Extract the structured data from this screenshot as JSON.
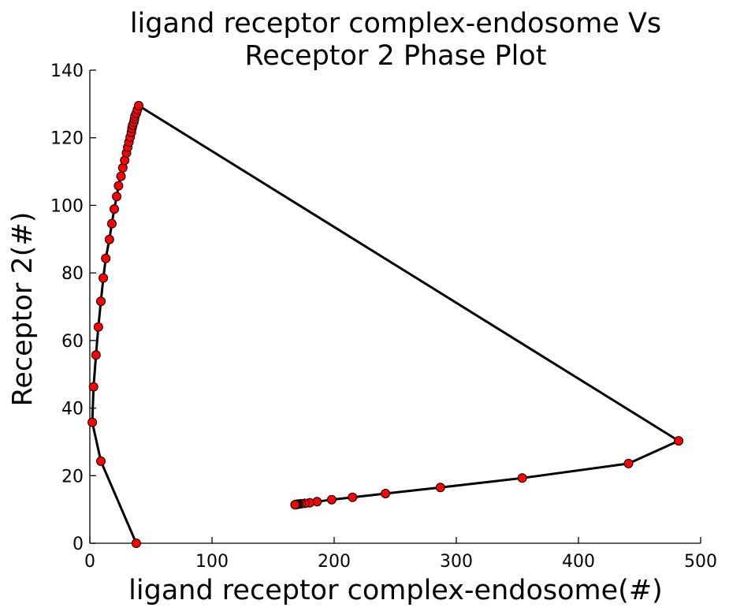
{
  "chart_data": {
    "type": "line",
    "title_lines": [
      "ligand receptor complex-endosome Vs",
      "Receptor 2 Phase Plot"
    ],
    "xlabel": "ligand receptor complex-endosome(#)",
    "ylabel": "Receptor 2(#)",
    "xlim": [
      0,
      500
    ],
    "ylim": [
      0,
      140
    ],
    "xticks": [
      "0",
      "100",
      "200",
      "300",
      "400",
      "500"
    ],
    "yticks": [
      "0",
      "20",
      "40",
      "60",
      "80",
      "100",
      "120",
      "140"
    ],
    "grid": false,
    "line_color": "#000000",
    "marker_color": "#ff0000",
    "marker_edge_color": "#000000",
    "x": [
      38,
      9,
      2,
      3,
      5,
      7,
      9,
      11,
      13,
      16,
      18,
      20,
      22,
      23.5,
      25.5,
      27,
      28.5,
      30,
      31,
      32,
      33,
      34,
      34.5,
      35,
      36,
      36.5,
      37,
      38,
      39,
      40,
      482,
      441,
      354,
      287,
      242,
      215,
      198,
      186,
      180,
      176,
      173,
      171,
      170,
      169.5,
      169,
      168.5,
      168
    ],
    "y": [
      0,
      24.3,
      35.8,
      46.3,
      55.7,
      64,
      71.6,
      78.5,
      84.3,
      89.9,
      94.6,
      98.9,
      102.6,
      105.8,
      108.6,
      111.1,
      113.3,
      115.5,
      117.2,
      118.7,
      120.2,
      121.6,
      122.8,
      123.7,
      124.6,
      125.5,
      126.4,
      127.2,
      128.3,
      129.5,
      30.3,
      23.6,
      19.3,
      16.5,
      14.7,
      13.6,
      12.9,
      12.3,
      12,
      11.8,
      11.7,
      11.6,
      11.55,
      11.5,
      11.5,
      11.45,
      11.4
    ]
  }
}
